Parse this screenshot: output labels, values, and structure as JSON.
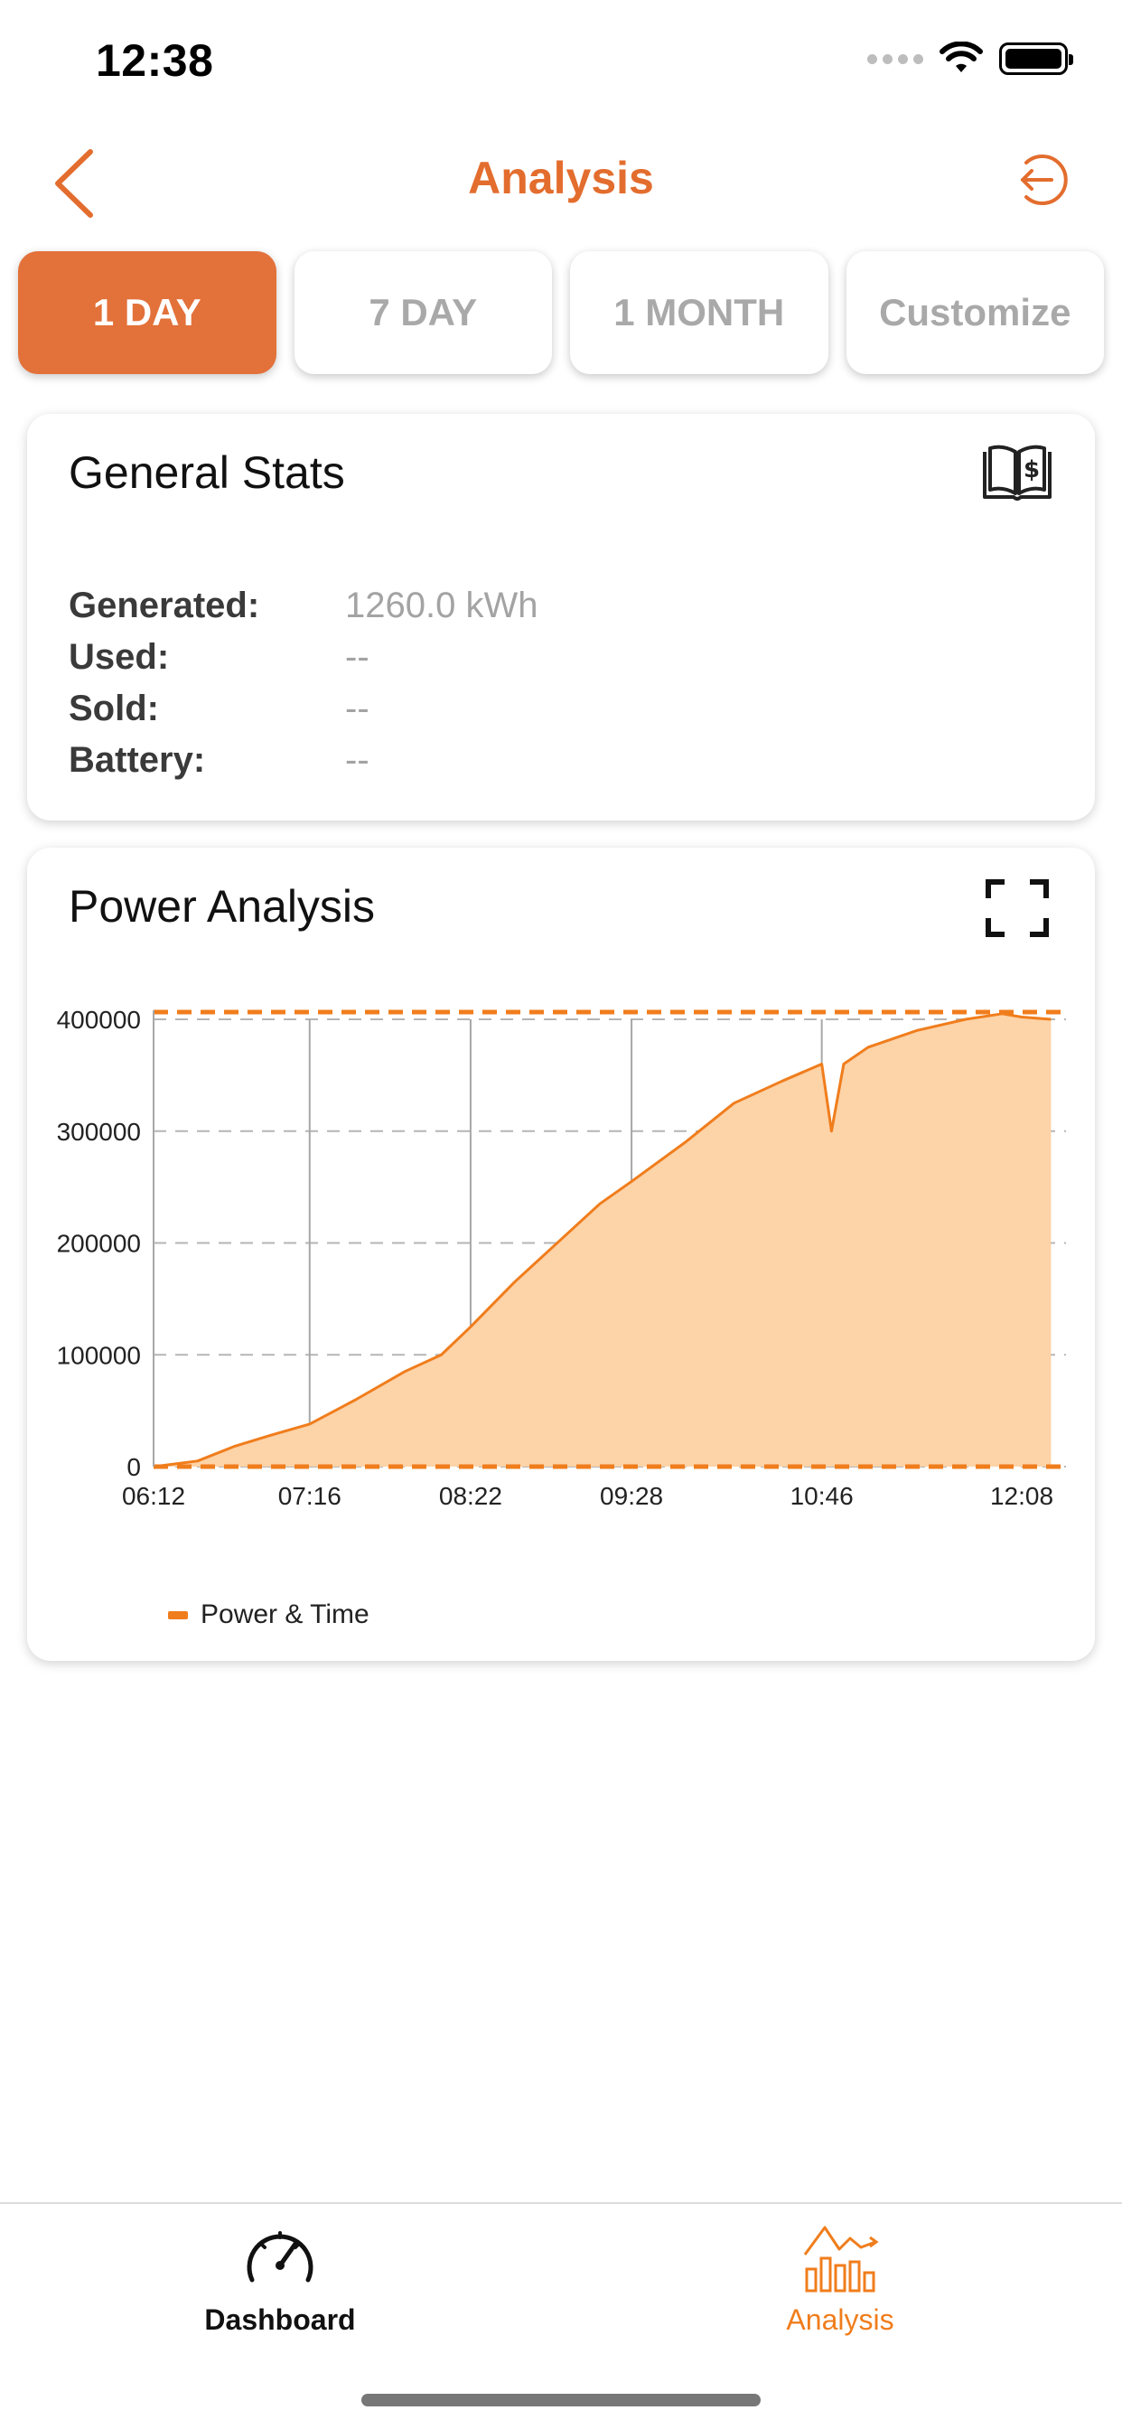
{
  "status_bar": {
    "time": "12:38"
  },
  "nav": {
    "title": "Analysis"
  },
  "tabs": [
    {
      "label": "1 DAY",
      "active": true
    },
    {
      "label": "7 DAY",
      "active": false
    },
    {
      "label": "1 MONTH",
      "active": false
    },
    {
      "label": "Customize",
      "active": false
    }
  ],
  "general_stats": {
    "title": "General Stats",
    "icon": "book-dollar-icon",
    "rows": [
      {
        "label": "Generated:",
        "value": "1260.0 kWh"
      },
      {
        "label": "Used:",
        "value": "--"
      },
      {
        "label": "Sold:",
        "value": "--"
      },
      {
        "label": "Battery:",
        "value": "--"
      }
    ]
  },
  "power_analysis": {
    "title": "Power Analysis",
    "icon": "fullscreen-icon",
    "legend_label": "Power & Time"
  },
  "chart_data": {
    "type": "area",
    "title": "",
    "xlabel": "",
    "ylabel": "",
    "x_tick_labels": [
      "06:12",
      "07:16",
      "08:22",
      "09:28",
      "10:46",
      "12:08"
    ],
    "y_tick_labels": [
      "0",
      "100000",
      "200000",
      "300000",
      "400000"
    ],
    "ylim": [
      0,
      400000
    ],
    "series": [
      {
        "name": "Power & Time",
        "color": "#f07d1c",
        "fill": "#fdd3a8",
        "x": [
          "06:12",
          "06:30",
          "06:45",
          "07:00",
          "07:16",
          "07:35",
          "07:55",
          "08:10",
          "08:22",
          "08:40",
          "09:00",
          "09:15",
          "09:28",
          "09:50",
          "10:10",
          "10:30",
          "10:46",
          "10:50",
          "10:55",
          "11:05",
          "11:25",
          "11:45",
          "12:00",
          "12:08",
          "12:20"
        ],
        "values": [
          0,
          5000,
          18000,
          28000,
          38000,
          60000,
          85000,
          100000,
          125000,
          165000,
          205000,
          235000,
          255000,
          290000,
          325000,
          345000,
          360000,
          300000,
          360000,
          375000,
          390000,
          400000,
          405000,
          402000,
          400000
        ]
      }
    ],
    "reference_lines": [
      {
        "label": "",
        "value": 400000,
        "style": "dashed"
      },
      {
        "label": "",
        "value": 0,
        "style": "dashed"
      }
    ],
    "grid": true
  },
  "bottom_tabs": [
    {
      "label": "Dashboard",
      "icon": "speedometer-icon",
      "active": false
    },
    {
      "label": "Analysis",
      "icon": "chart-icon",
      "active": true
    }
  ]
}
